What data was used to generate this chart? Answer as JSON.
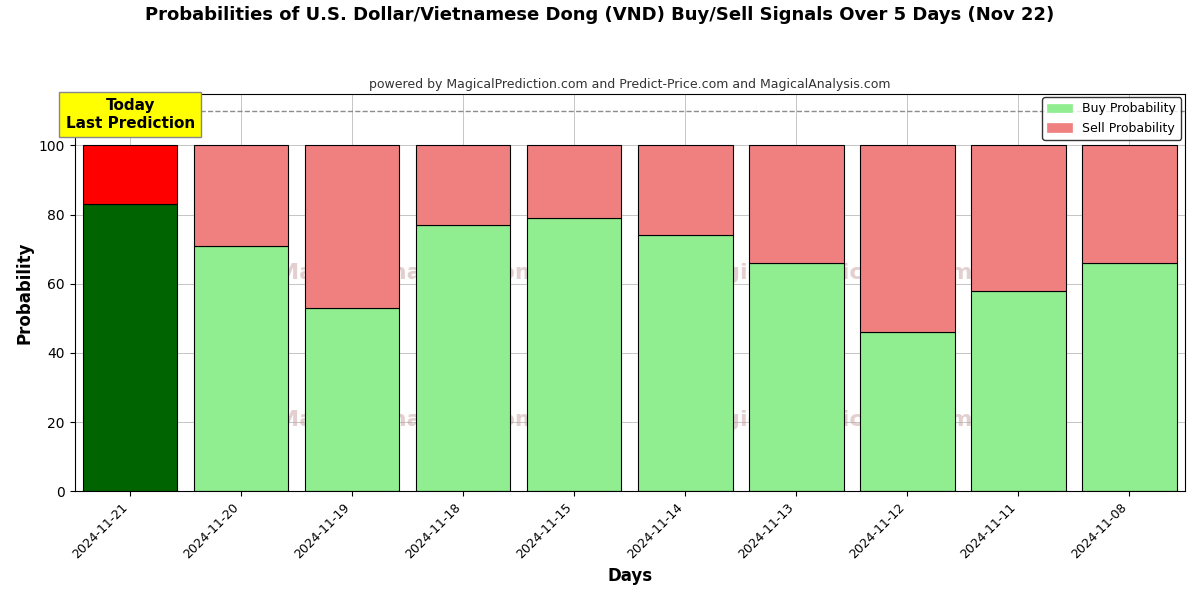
{
  "title": "Probabilities of U.S. Dollar/Vietnamese Dong (VND) Buy/Sell Signals Over 5 Days (Nov 22)",
  "subtitle": "powered by MagicalPrediction.com and Predict-Price.com and MagicalAnalysis.com",
  "xlabel": "Days",
  "ylabel": "Probability",
  "dates": [
    "2024-11-21",
    "2024-11-20",
    "2024-11-19",
    "2024-11-18",
    "2024-11-15",
    "2024-11-14",
    "2024-11-13",
    "2024-11-12",
    "2024-11-11",
    "2024-11-08"
  ],
  "buy_values": [
    83,
    71,
    53,
    77,
    79,
    74,
    66,
    46,
    58,
    66
  ],
  "sell_values": [
    17,
    29,
    47,
    23,
    21,
    26,
    34,
    54,
    42,
    34
  ],
  "today_buy_color": "#006400",
  "today_sell_color": "#FF0000",
  "buy_color": "#90EE90",
  "sell_color": "#F08080",
  "today_annotation_bg": "#FFFF00",
  "today_annotation_text": "Today\nLast Prediction",
  "bar_edge_color": "#000000",
  "ylim": [
    0,
    115
  ],
  "yticks": [
    0,
    20,
    40,
    60,
    80,
    100
  ],
  "dashed_line_y": 110,
  "legend_labels": [
    "Buy Probability",
    "Sell Probability"
  ],
  "background_color": "#ffffff",
  "grid_color": "#aaaaaa"
}
